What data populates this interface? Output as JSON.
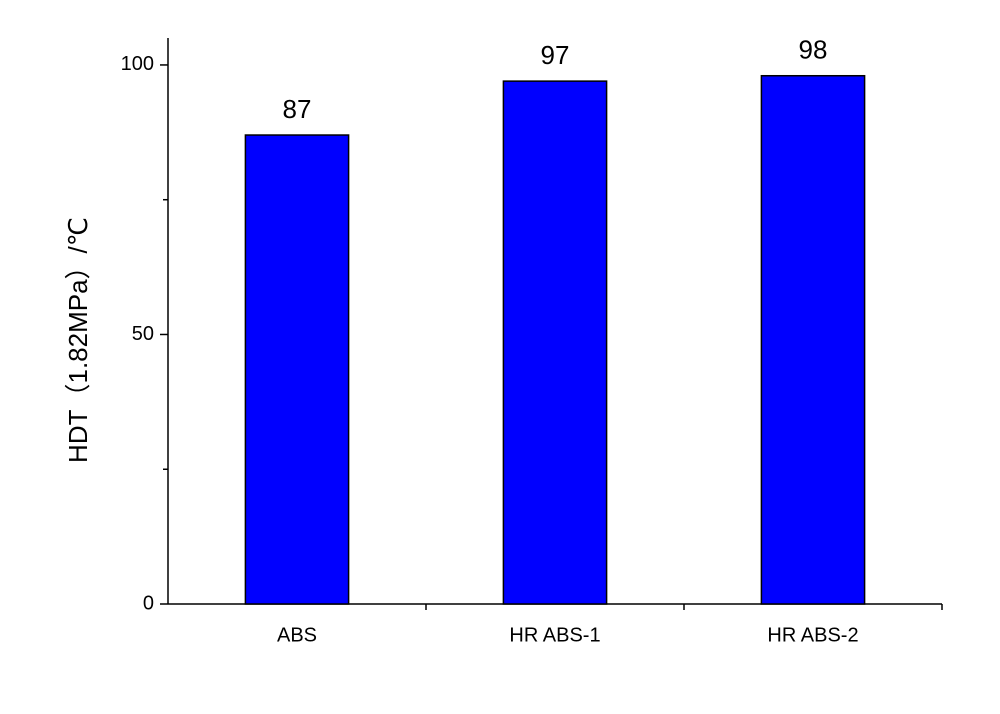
{
  "chart_data": {
    "type": "bar",
    "y_label": "HDT（1.82MPa）/℃",
    "categories": [
      "ABS",
      "HR ABS-1",
      "HR ABS-2"
    ],
    "values": [
      87,
      97,
      98
    ],
    "color": "#0000ff",
    "ylim": [
      0,
      105
    ],
    "yticks": [
      0,
      50,
      100
    ],
    "minor_yticks": [
      25,
      75
    ],
    "grid": false
  }
}
